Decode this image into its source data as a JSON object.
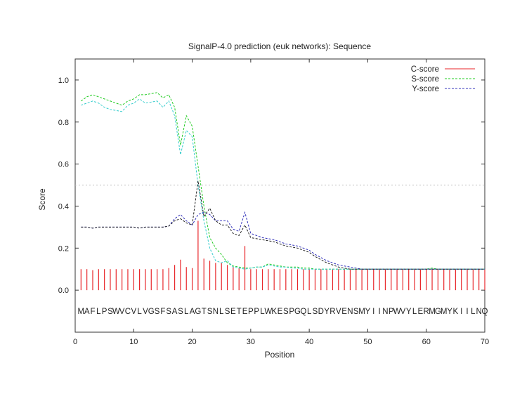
{
  "chart_data": {
    "type": "line",
    "title": "SignalP-4.0 prediction (euk networks): Sequence",
    "xlabel": "Position",
    "ylabel": "Score",
    "xlim": [
      0,
      70
    ],
    "ylim": [
      -0.2,
      1.1
    ],
    "xticks": [
      0,
      10,
      20,
      30,
      40,
      50,
      60,
      70
    ],
    "yticks": [
      0.0,
      0.2,
      0.4,
      0.6,
      0.8,
      1.0
    ],
    "ytick_labels": [
      "0.0",
      "0.2",
      "0.4",
      "0.6",
      "0.8",
      "1.0"
    ],
    "threshold": 0.5,
    "legend_position": "top-right",
    "sequence": "MAFLPSWVCVLVGSFSASLAGTSNLSETEPPLWKESPGQLSDYRVENSMYIINPWVYLERMGMYKIILNQ",
    "series": [
      {
        "name": "C-score",
        "style": "impulses",
        "color": "#e8262a",
        "values": [
          0.1,
          0.1,
          0.095,
          0.1,
          0.1,
          0.1,
          0.1,
          0.1,
          0.1,
          0.1,
          0.1,
          0.1,
          0.1,
          0.1,
          0.1,
          0.105,
          0.12,
          0.145,
          0.11,
          0.105,
          0.33,
          0.15,
          0.14,
          0.13,
          0.13,
          0.12,
          0.11,
          0.105,
          0.21,
          0.1,
          0.1,
          0.1,
          0.1,
          0.1,
          0.1,
          0.1,
          0.1,
          0.1,
          0.1,
          0.1,
          0.1,
          0.1,
          0.1,
          0.1,
          0.1,
          0.1,
          0.1,
          0.1,
          0.1,
          0.1,
          0.1,
          0.1,
          0.1,
          0.1,
          0.1,
          0.1,
          0.1,
          0.1,
          0.1,
          0.1,
          0.1,
          0.1,
          0.1,
          0.1,
          0.1,
          0.1,
          0.1,
          0.1,
          0.1,
          0.1
        ]
      },
      {
        "name": "S-score",
        "style": "dashed",
        "color": "#22cc22",
        "values": [
          0.9,
          0.92,
          0.93,
          0.92,
          0.91,
          0.9,
          0.89,
          0.88,
          0.9,
          0.91,
          0.93,
          0.93,
          0.935,
          0.94,
          0.915,
          0.93,
          0.87,
          0.69,
          0.83,
          0.78,
          0.59,
          0.4,
          0.25,
          0.2,
          0.17,
          0.13,
          0.115,
          0.11,
          0.105,
          0.105,
          0.11,
          0.11,
          0.125,
          0.12,
          0.115,
          0.11,
          0.11,
          0.11,
          0.105,
          0.105,
          0.1,
          0.1,
          0.1,
          0.1,
          0.1,
          0.1,
          0.1,
          0.1,
          0.1,
          0.1,
          0.1,
          0.1,
          0.1,
          0.1,
          0.1,
          0.1,
          0.1,
          0.1,
          0.1,
          0.1,
          0.105,
          0.1,
          0.1,
          0.1,
          0.1,
          0.1,
          0.1,
          0.1,
          0.1,
          0.1
        ]
      },
      {
        "style": "dashed",
        "color": "#33cccc",
        "values": [
          0.88,
          0.89,
          0.9,
          0.89,
          0.87,
          0.86,
          0.855,
          0.85,
          0.88,
          0.89,
          0.91,
          0.89,
          0.895,
          0.9,
          0.87,
          0.9,
          0.83,
          0.645,
          0.76,
          0.73,
          0.5,
          0.33,
          0.2,
          0.14,
          0.13,
          0.14,
          0.11,
          0.105,
          0.1,
          0.105,
          0.11,
          0.11,
          0.12,
          0.115,
          0.11,
          0.11,
          0.105,
          0.105,
          0.1,
          0.1,
          0.1,
          0.1,
          0.1,
          0.1,
          0.1,
          0.1,
          0.1,
          0.1,
          0.1,
          0.1,
          0.1,
          0.1,
          0.1,
          0.1,
          0.1,
          0.1,
          0.1,
          0.1,
          0.1,
          0.1,
          0.1,
          0.1,
          0.1,
          0.1,
          0.1,
          0.1,
          0.1,
          0.1,
          0.1,
          0.1
        ]
      },
      {
        "name": "Y-score",
        "style": "dashed",
        "color": "#3333bb",
        "values": [
          0.3,
          0.3,
          0.295,
          0.3,
          0.3,
          0.3,
          0.3,
          0.3,
          0.3,
          0.3,
          0.295,
          0.3,
          0.3,
          0.3,
          0.3,
          0.305,
          0.34,
          0.36,
          0.33,
          0.31,
          0.36,
          0.37,
          0.36,
          0.33,
          0.33,
          0.33,
          0.29,
          0.28,
          0.37,
          0.27,
          0.26,
          0.25,
          0.245,
          0.24,
          0.23,
          0.22,
          0.215,
          0.21,
          0.2,
          0.19,
          0.17,
          0.155,
          0.14,
          0.13,
          0.12,
          0.115,
          0.11,
          0.105,
          0.1,
          0.1,
          0.1,
          0.1,
          0.1,
          0.1,
          0.1,
          0.1,
          0.1,
          0.1,
          0.1,
          0.1,
          0.1,
          0.1,
          0.1,
          0.1,
          0.1,
          0.1,
          0.1,
          0.1,
          0.1,
          0.1
        ]
      },
      {
        "style": "dashed",
        "color": "#222222",
        "values": [
          0.3,
          0.3,
          0.295,
          0.3,
          0.3,
          0.3,
          0.3,
          0.3,
          0.3,
          0.3,
          0.295,
          0.3,
          0.3,
          0.3,
          0.3,
          0.305,
          0.33,
          0.34,
          0.32,
          0.31,
          0.52,
          0.35,
          0.39,
          0.33,
          0.31,
          0.31,
          0.27,
          0.26,
          0.31,
          0.25,
          0.245,
          0.24,
          0.235,
          0.23,
          0.22,
          0.21,
          0.205,
          0.2,
          0.19,
          0.18,
          0.16,
          0.145,
          0.13,
          0.12,
          0.11,
          0.105,
          0.1,
          0.1,
          0.1,
          0.1,
          0.1,
          0.1,
          0.1,
          0.1,
          0.1,
          0.1,
          0.1,
          0.1,
          0.1,
          0.1,
          0.1,
          0.1,
          0.1,
          0.1,
          0.1,
          0.1,
          0.1,
          0.1,
          0.1,
          0.1
        ]
      }
    ]
  }
}
